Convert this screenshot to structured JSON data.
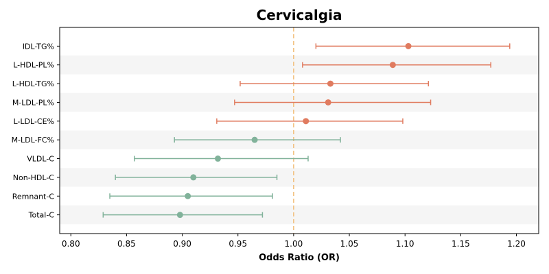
{
  "chart_data": {
    "type": "forest",
    "title": "Cervicalgia",
    "xlabel": "Odds Ratio (OR)",
    "ylabel": "",
    "xlim": [
      0.79,
      1.22
    ],
    "x_ticks": [
      "0.80",
      "0.85",
      "0.90",
      "0.95",
      "1.00",
      "1.05",
      "1.10",
      "1.15",
      "1.20"
    ],
    "reference_line": 1.0,
    "grid": false,
    "colors": {
      "positive": "#E07B5F",
      "negative": "#81B29A",
      "reference": "#F2C07E",
      "band": "#f5f5f5"
    },
    "items": [
      {
        "label": "IDL-TG%",
        "or": 1.103,
        "lower": 1.02,
        "upper": 1.194
      },
      {
        "label": "L-HDL-PL%",
        "or": 1.089,
        "lower": 1.008,
        "upper": 1.177
      },
      {
        "label": "L-HDL-TG%",
        "or": 1.033,
        "lower": 0.952,
        "upper": 1.121
      },
      {
        "label": "M-LDL-PL%",
        "or": 1.031,
        "lower": 0.947,
        "upper": 1.123
      },
      {
        "label": "L-LDL-CE%",
        "or": 1.011,
        "lower": 0.931,
        "upper": 1.098
      },
      {
        "label": "M-LDL-FC%",
        "or": 0.965,
        "lower": 0.893,
        "upper": 1.042
      },
      {
        "label": "VLDL-C",
        "or": 0.932,
        "lower": 0.857,
        "upper": 1.013
      },
      {
        "label": "Non-HDL-C",
        "or": 0.91,
        "lower": 0.84,
        "upper": 0.985
      },
      {
        "label": "Remnant-C",
        "or": 0.905,
        "lower": 0.835,
        "upper": 0.981
      },
      {
        "label": "Total-C",
        "or": 0.898,
        "lower": 0.829,
        "upper": 0.972
      }
    ]
  }
}
